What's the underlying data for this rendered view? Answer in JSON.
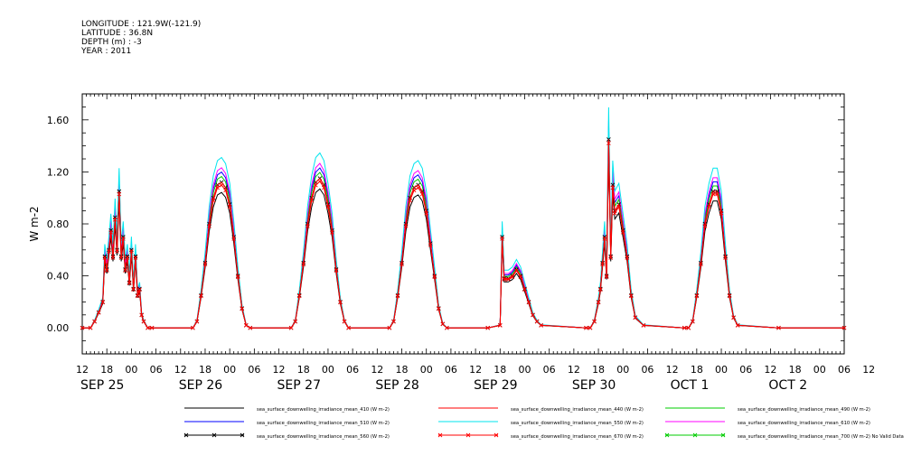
{
  "header_meta": [
    "LONGITUDE : 121.9W(-121.9)",
    "LATITUDE : 36.8N",
    "DEPTH (m) : -3",
    "YEAR : 2011"
  ],
  "chart_data": {
    "type": "line",
    "ylabel": "W m-2",
    "ylim": [
      -0.2,
      1.8
    ],
    "yticks": [
      "0.00",
      "0.40",
      "0.80",
      "1.20",
      "1.60"
    ],
    "ytick_values": [
      0,
      0.4,
      0.8,
      1.2,
      1.6
    ],
    "xlim_hours": [
      0,
      186
    ],
    "hour_ticks": [
      "12",
      "18",
      "00",
      "06",
      "12",
      "18",
      "00",
      "06",
      "12",
      "18",
      "00",
      "06",
      "12",
      "18",
      "00",
      "06",
      "12",
      "18",
      "00",
      "06",
      "12",
      "18",
      "00",
      "06",
      "12",
      "18",
      "00",
      "06",
      "12",
      "18",
      "00",
      "06",
      "12"
    ],
    "day_labels": [
      "SEP 25",
      "SEP 26",
      "SEP 27",
      "SEP 28",
      "SEP 29",
      "SEP 30",
      "OCT  1",
      "OCT  2"
    ],
    "day_label_hours": [
      0,
      24,
      48,
      72,
      96,
      120,
      144,
      168
    ],
    "reference_series": "sea_surface_downwelling_irradiance_mean_560 (W m-2)",
    "reference_x_hours": [
      0,
      2,
      3,
      4,
      5,
      5.5,
      6,
      6.5,
      7,
      7.5,
      8,
      8.5,
      9,
      9.5,
      10,
      10.5,
      11,
      11.5,
      12,
      12.5,
      13,
      13.5,
      14,
      14.5,
      15,
      16,
      17,
      27,
      28,
      29,
      30,
      31,
      32,
      33,
      34,
      35,
      36,
      37,
      38,
      39,
      40,
      41,
      51,
      52,
      53,
      54,
      55,
      56,
      57,
      58,
      59,
      60,
      61,
      62,
      63,
      64,
      65,
      75,
      76,
      77,
      78,
      79,
      80,
      81,
      82,
      83,
      84,
      85,
      86,
      87,
      88,
      89,
      99,
      102,
      102.5,
      103,
      104,
      105,
      106,
      107,
      108,
      109,
      110,
      111,
      112,
      123,
      124,
      125,
      126,
      126.5,
      127,
      127.5,
      128,
      128.5,
      129,
      129.5,
      130,
      131,
      132,
      133,
      134,
      135,
      137,
      147,
      148,
      149,
      150,
      151,
      152,
      153,
      154,
      155,
      156,
      157,
      158,
      159,
      160,
      170,
      186
    ],
    "reference_y": [
      0,
      0,
      0.05,
      0.12,
      0.2,
      0.55,
      0.45,
      0.6,
      0.75,
      0.55,
      0.85,
      0.6,
      1.05,
      0.55,
      0.7,
      0.45,
      0.55,
      0.35,
      0.6,
      0.3,
      0.55,
      0.25,
      0.3,
      0.1,
      0.05,
      0,
      0,
      0,
      0.05,
      0.25,
      0.5,
      0.8,
      1.0,
      1.1,
      1.12,
      1.08,
      0.95,
      0.7,
      0.4,
      0.15,
      0.02,
      0,
      0,
      0.05,
      0.25,
      0.5,
      0.8,
      1.0,
      1.12,
      1.15,
      1.1,
      0.95,
      0.75,
      0.45,
      0.2,
      0.05,
      0,
      0,
      0.05,
      0.25,
      0.5,
      0.8,
      1.0,
      1.08,
      1.1,
      1.05,
      0.9,
      0.65,
      0.4,
      0.15,
      0.03,
      0,
      0,
      0.02,
      0.7,
      0.38,
      0.38,
      0.4,
      0.45,
      0.4,
      0.3,
      0.2,
      0.1,
      0.05,
      0.02,
      0,
      0,
      0.05,
      0.2,
      0.3,
      0.5,
      0.7,
      0.4,
      1.45,
      0.55,
      1.1,
      0.9,
      0.95,
      0.75,
      0.55,
      0.25,
      0.08,
      0.02,
      0,
      0,
      0.05,
      0.25,
      0.5,
      0.8,
      0.95,
      1.05,
      1.05,
      0.9,
      0.55,
      0.25,
      0.08,
      0.02,
      0,
      0
    ],
    "series": [
      {
        "name": "sea_surface_downwelling_irradiance_mean_410 (W m-2)",
        "color": "#000000",
        "marker": "none",
        "scale": 0.93
      },
      {
        "name": "sea_surface_downwelling_irradiance_mean_440 (W m-2)",
        "color": "#ff0000",
        "marker": "none",
        "scale": 1.0
      },
      {
        "name": "sea_surface_downwelling_irradiance_mean_490 (W m-2)",
        "color": "#00cc00",
        "marker": "none",
        "scale": 1.04
      },
      {
        "name": "sea_surface_downwelling_irradiance_mean_510 (W m-2)",
        "color": "#0000ff",
        "marker": "none",
        "scale": 1.07
      },
      {
        "name": "sea_surface_downwelling_irradiance_mean_550 (W m-2)",
        "color": "#00e5ee",
        "marker": "none",
        "scale": 1.17
      },
      {
        "name": "sea_surface_downwelling_irradiance_mean_610 (W m-2)",
        "color": "#ff00ff",
        "marker": "none",
        "scale": 1.1
      },
      {
        "name": "sea_surface_downwelling_irradiance_mean_560 (W m-2)",
        "color": "#000000",
        "marker": "x",
        "scale": 1.0
      },
      {
        "name": "sea_surface_downwelling_irradiance_mean_670 (W m-2)",
        "color": "#ff0000",
        "marker": "x",
        "scale": 0.98
      },
      {
        "name": "sea_surface_downwelling_irradiance_mean_700 (W m-2) No Valid Data",
        "color": "#00cc00",
        "marker": "x",
        "scale": 0
      }
    ]
  }
}
